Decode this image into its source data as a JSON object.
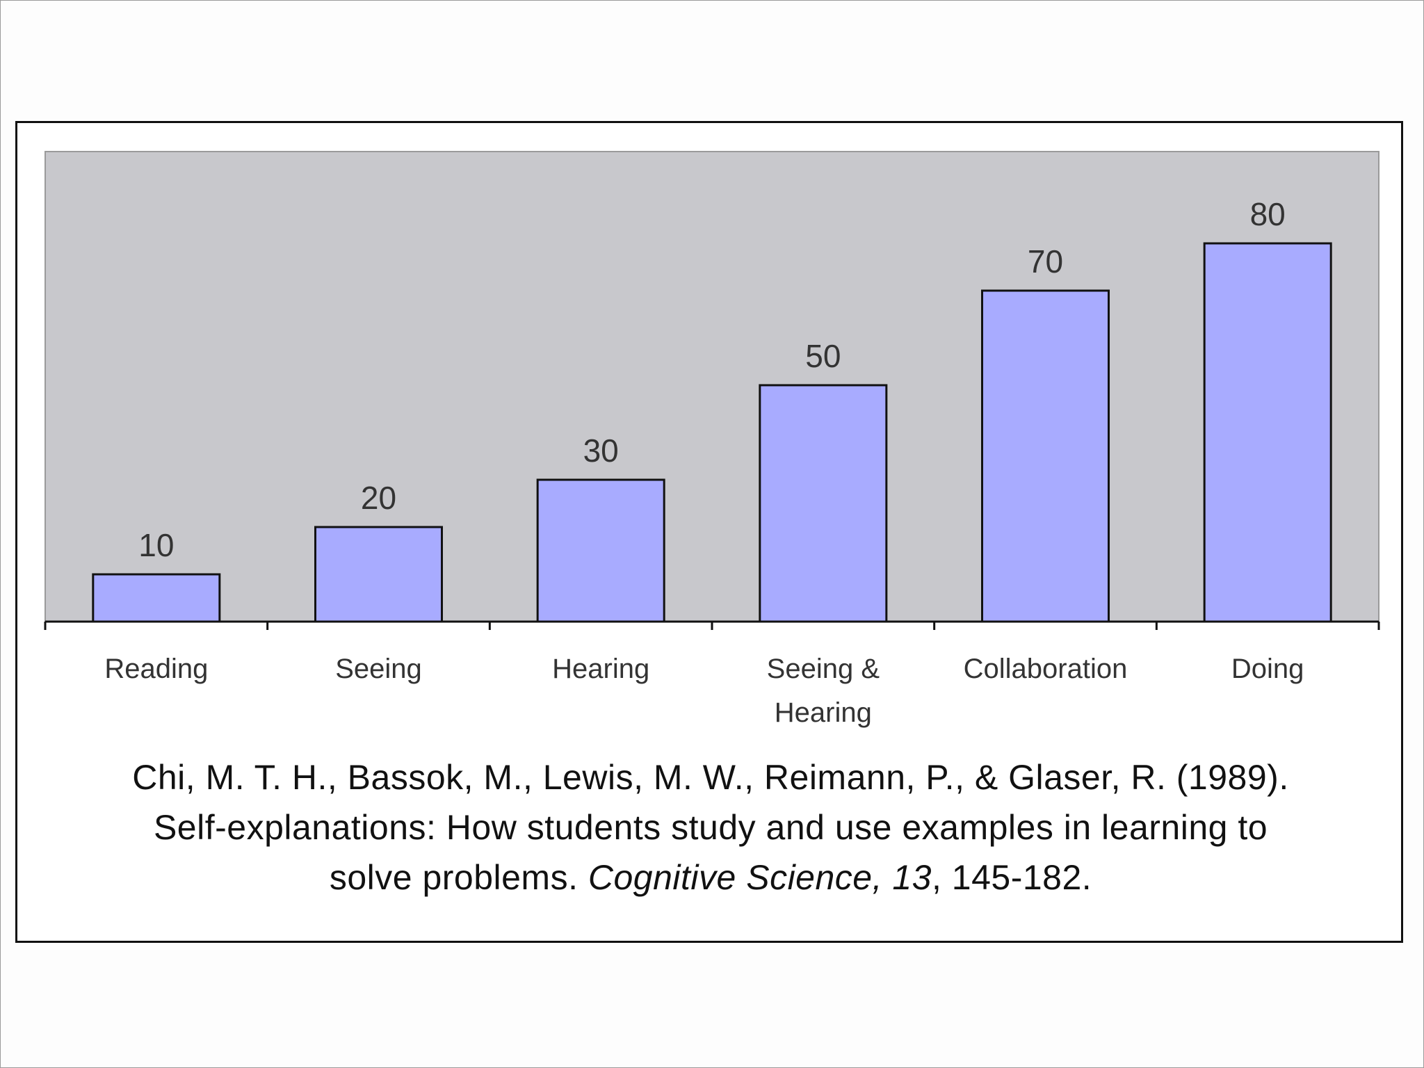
{
  "colors": {
    "plot_background": "#c8c8cc",
    "bar_fill": "#a8abff",
    "bar_stroke": "#111111",
    "axis": "#111111",
    "label_text": "#333333"
  },
  "chart_data": {
    "type": "bar",
    "categories": [
      "Reading",
      "Seeing",
      "Hearing",
      "Seeing & Hearing",
      "Collaboration",
      "Doing"
    ],
    "category_label_lines": [
      [
        "Reading"
      ],
      [
        "Seeing"
      ],
      [
        "Hearing"
      ],
      [
        "Seeing &",
        "Hearing"
      ],
      [
        "Collaboration"
      ],
      [
        "Doing"
      ]
    ],
    "values": [
      10,
      20,
      30,
      50,
      70,
      80
    ],
    "data_labels": [
      "10",
      "20",
      "30",
      "50",
      "70",
      "80"
    ],
    "title": "",
    "xlabel": "",
    "ylabel": "",
    "ylim": [
      0,
      100
    ],
    "grid": false,
    "legend": "none"
  },
  "citation": {
    "authors_line": "Chi, M. T. H., Bassok, M., Lewis, M. W., Reimann, P., & Glaser, R. (1989).",
    "title_line": "Self-explanations: How students study and use examples in learning to",
    "title_end": "solve problems. ",
    "journal": "Cognitive Science, 13",
    "pages": ", 145-182."
  }
}
